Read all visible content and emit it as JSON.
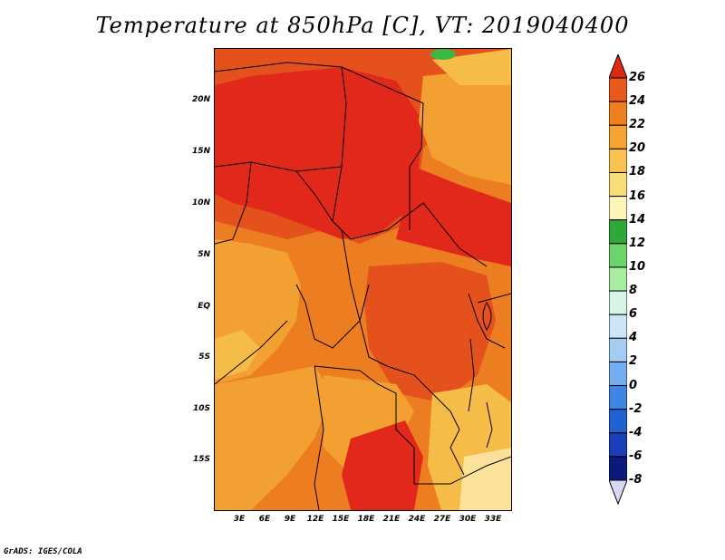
{
  "title": "Temperature at 850hPa [C], VT: 2019040400",
  "credit": "GrADS: IGES/COLA",
  "map": {
    "lat_labels": [
      "20N",
      "15N",
      "10N",
      "5N",
      "EQ",
      "5S",
      "10S",
      "15S"
    ],
    "lon_labels": [
      "3E",
      "6E",
      "9E",
      "12E",
      "15E",
      "18E",
      "21E",
      "24E",
      "27E",
      "30E",
      "33E"
    ]
  },
  "colorbar": {
    "labels": [
      "26",
      "24",
      "22",
      "20",
      "18",
      "16",
      "14",
      "12",
      "10",
      "8",
      "6",
      "4",
      "2",
      "0",
      "-2",
      "-4",
      "-6",
      "-8"
    ],
    "colors": [
      "#e23a16",
      "#e85a1c",
      "#ee8020",
      "#f5a332",
      "#f8c34e",
      "#fadc7a",
      "#fdf5b8",
      "#2ea838",
      "#6dd46a",
      "#a8eca0",
      "#d7f5e6",
      "#cce4f8",
      "#a4cdf4",
      "#74aef0",
      "#3f86e4",
      "#1f62d2",
      "#1a3fb8",
      "#0c1b7a"
    ],
    "top_triangle_color": "#dc2a12",
    "bottom_triangle_color": "#d8d8f4"
  },
  "field_colors": {
    "hot": "#e2281a",
    "warm": "#e4511c",
    "mid": "#ec7d20",
    "orange": "#f2a031",
    "light": "#f6bc48",
    "pale": "#fbe19a",
    "green": "#3ab842"
  }
}
